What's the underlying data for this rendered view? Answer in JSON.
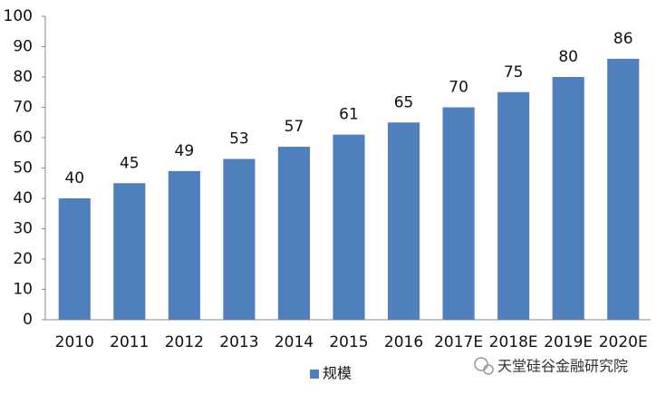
{
  "chart_data": {
    "type": "bar",
    "categories": [
      "2010",
      "2011",
      "2012",
      "2013",
      "2014",
      "2015",
      "2016",
      "2017E",
      "2018E",
      "2019E",
      "2020E"
    ],
    "series": [
      {
        "name": "规模",
        "color": "#4f7fbc",
        "values": [
          40,
          45,
          49,
          53,
          57,
          61,
          65,
          70,
          75,
          80,
          86
        ]
      }
    ],
    "ylim": [
      0,
      100
    ],
    "yticks": [
      0,
      10,
      20,
      30,
      40,
      50,
      60,
      70,
      80,
      90,
      100
    ],
    "grid": false,
    "legend": "bottom",
    "watermark": "天堂硅谷金融研究院"
  }
}
